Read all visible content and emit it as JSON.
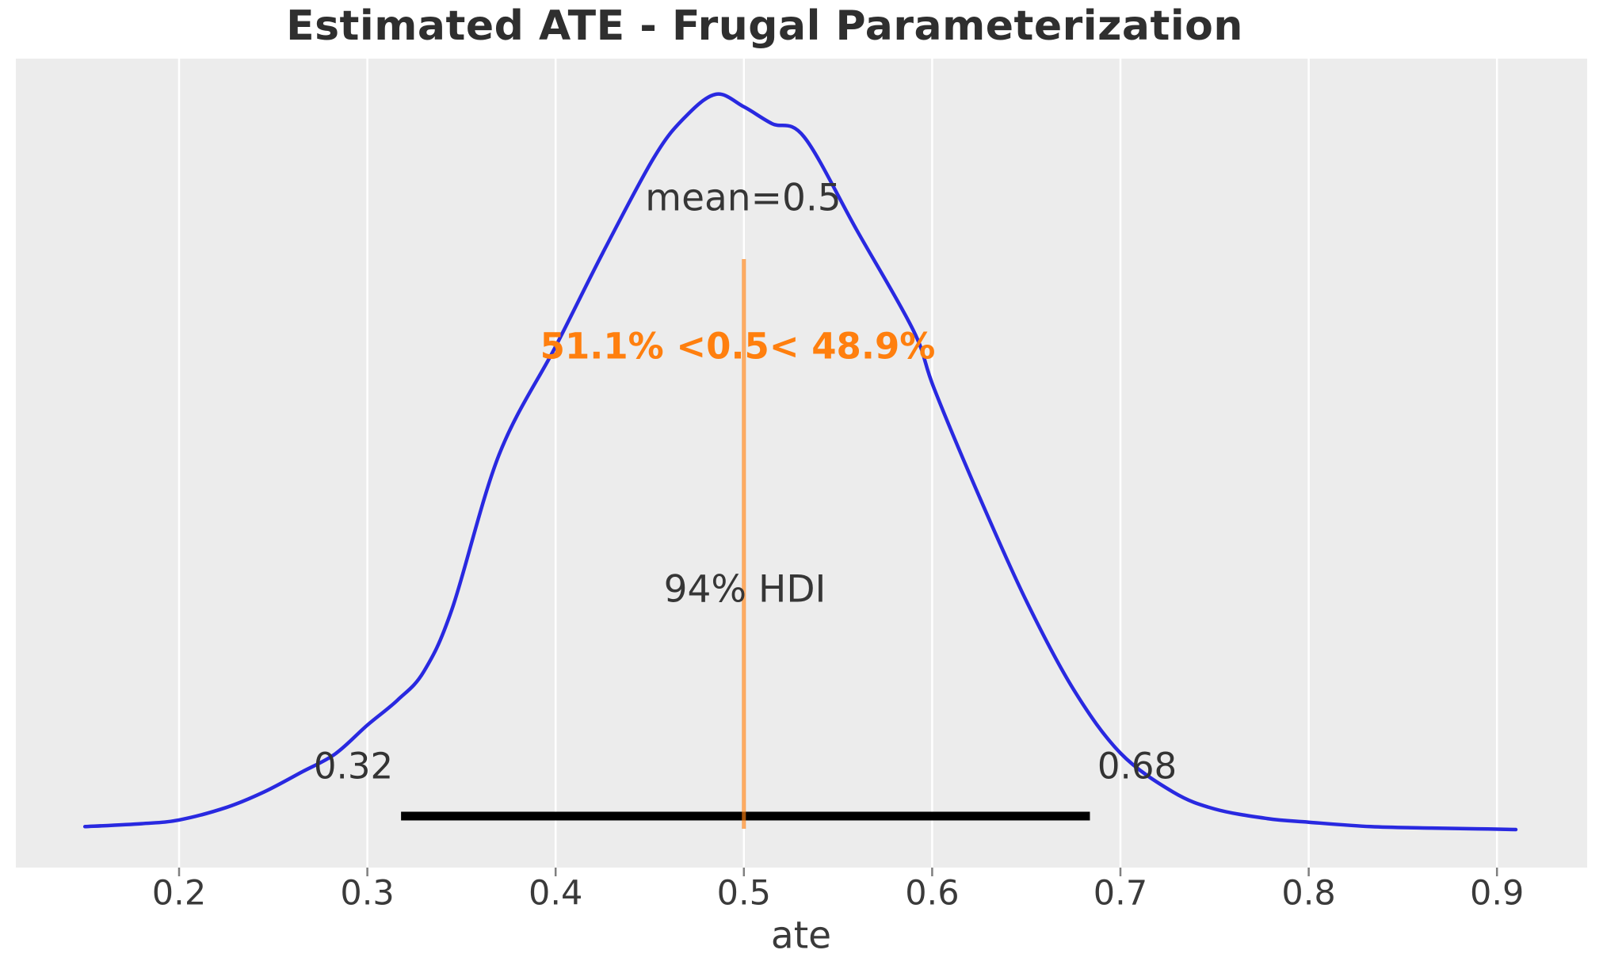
{
  "figure": {
    "title": "Estimated ATE - Frugal Parameterization",
    "xlabel": "ate"
  },
  "annotations": {
    "mean_label": "mean=0.5",
    "ref_prob_label": "51.1% <0.5< 48.9%",
    "hdi_label": "94% HDI",
    "hdi_low_label": "0.32",
    "hdi_high_label": "0.68"
  },
  "x_ticks": [
    {
      "label": "0.2",
      "value": 0.2
    },
    {
      "label": "0.3",
      "value": 0.3
    },
    {
      "label": "0.4",
      "value": 0.4
    },
    {
      "label": "0.5",
      "value": 0.5
    },
    {
      "label": "0.6",
      "value": 0.6
    },
    {
      "label": "0.7",
      "value": 0.7
    },
    {
      "label": "0.8",
      "value": 0.8
    },
    {
      "label": "0.9",
      "value": 0.9
    }
  ],
  "colors": {
    "plot_background": "#ececec",
    "gridline": "#ffffff",
    "tick_mark": "#7f7f7f",
    "kde_curve": "#2929e0",
    "ref_line_orange": "#ff7f0e",
    "ref_line_alpha": 0.65,
    "hdi_bar": "#000000",
    "text": "#363636"
  },
  "chart_data": {
    "type": "kde",
    "title": "Estimated ATE - Frugal Parameterization",
    "xlabel": "ate",
    "ylabel": "",
    "x_range": [
      0.15,
      0.91
    ],
    "x_tick_values": [
      0.2,
      0.3,
      0.4,
      0.5,
      0.6,
      0.7,
      0.8,
      0.9
    ],
    "grid": "vertical-white-on-gray",
    "mean": 0.5,
    "ref_value": 0.5,
    "prob_below_ref": "51.1%",
    "prob_above_ref": "48.9%",
    "hdi_prob": "94%",
    "hdi": [
      0.32,
      0.68
    ],
    "curve": {
      "x": [
        0.15,
        0.18,
        0.2,
        0.225,
        0.245,
        0.265,
        0.283,
        0.3,
        0.316,
        0.33,
        0.345,
        0.37,
        0.4,
        0.425,
        0.452,
        0.468,
        0.485,
        0.5,
        0.515,
        0.532,
        0.56,
        0.59,
        0.601,
        0.625,
        0.65,
        0.675,
        0.7,
        0.728,
        0.75,
        0.778,
        0.8,
        0.833,
        0.865,
        0.89,
        0.91
      ],
      "density": [
        0.004,
        0.008,
        0.013,
        0.03,
        0.051,
        0.078,
        0.103,
        0.142,
        0.176,
        0.215,
        0.3,
        0.51,
        0.657,
        0.784,
        0.913,
        0.967,
        1.0,
        0.983,
        0.96,
        0.942,
        0.815,
        0.679,
        0.6,
        0.453,
        0.311,
        0.191,
        0.104,
        0.051,
        0.028,
        0.015,
        0.01,
        0.004,
        0.002,
        0.001,
        0.0
      ]
    }
  }
}
